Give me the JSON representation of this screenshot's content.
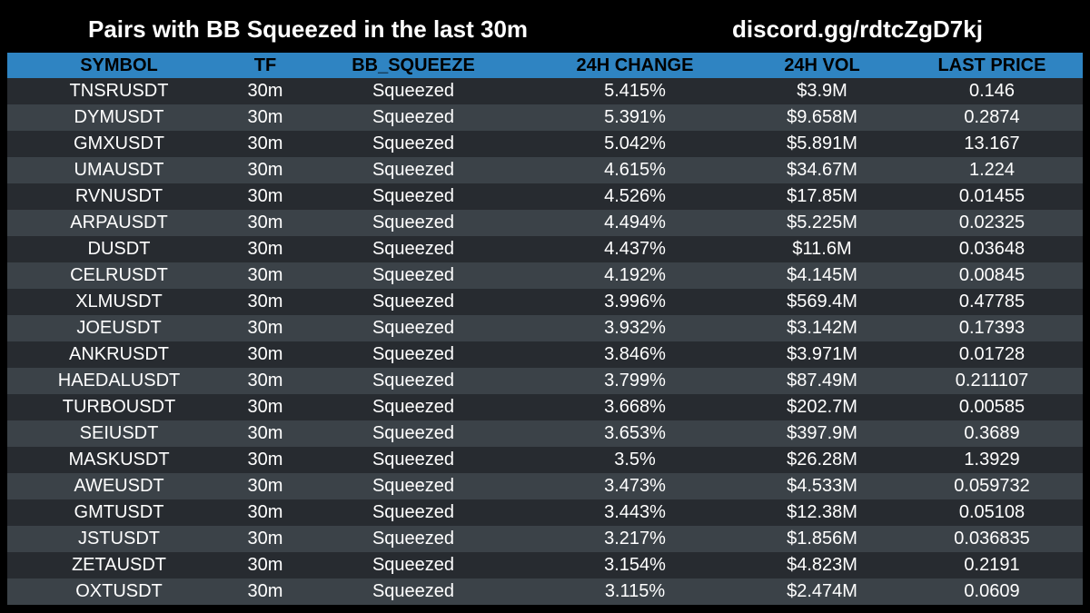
{
  "header": {
    "title": "Pairs with BB Squeezed in the last 30m",
    "link": "discord.gg/rdtcZgD7kj"
  },
  "table": {
    "columns": [
      "SYMBOL",
      "TF",
      "BB_SQUEEZE",
      "24H CHANGE",
      "24H VOL",
      "LAST PRICE"
    ],
    "rows": [
      [
        "TNSRUSDT",
        "30m",
        "Squeezed",
        "5.415%",
        "$3.9M",
        "0.146"
      ],
      [
        "DYMUSDT",
        "30m",
        "Squeezed",
        "5.391%",
        "$9.658M",
        "0.2874"
      ],
      [
        "GMXUSDT",
        "30m",
        "Squeezed",
        "5.042%",
        "$5.891M",
        "13.167"
      ],
      [
        "UMAUSDT",
        "30m",
        "Squeezed",
        "4.615%",
        "$34.67M",
        "1.224"
      ],
      [
        "RVNUSDT",
        "30m",
        "Squeezed",
        "4.526%",
        "$17.85M",
        "0.01455"
      ],
      [
        "ARPAUSDT",
        "30m",
        "Squeezed",
        "4.494%",
        "$5.225M",
        "0.02325"
      ],
      [
        "DUSDT",
        "30m",
        "Squeezed",
        "4.437%",
        "$11.6M",
        "0.03648"
      ],
      [
        "CELRUSDT",
        "30m",
        "Squeezed",
        "4.192%",
        "$4.145M",
        "0.00845"
      ],
      [
        "XLMUSDT",
        "30m",
        "Squeezed",
        "3.996%",
        "$569.4M",
        "0.47785"
      ],
      [
        "JOEUSDT",
        "30m",
        "Squeezed",
        "3.932%",
        "$3.142M",
        "0.17393"
      ],
      [
        "ANKRUSDT",
        "30m",
        "Squeezed",
        "3.846%",
        "$3.971M",
        "0.01728"
      ],
      [
        "HAEDALUSDT",
        "30m",
        "Squeezed",
        "3.799%",
        "$87.49M",
        "0.211107"
      ],
      [
        "TURBOUSDT",
        "30m",
        "Squeezed",
        "3.668%",
        "$202.7M",
        "0.00585"
      ],
      [
        "SEIUSDT",
        "30m",
        "Squeezed",
        "3.653%",
        "$397.9M",
        "0.3689"
      ],
      [
        "MASKUSDT",
        "30m",
        "Squeezed",
        "3.5%",
        "$26.28M",
        "1.3929"
      ],
      [
        "AWEUSDT",
        "30m",
        "Squeezed",
        "3.473%",
        "$4.533M",
        "0.059732"
      ],
      [
        "GMTUSDT",
        "30m",
        "Squeezed",
        "3.443%",
        "$12.38M",
        "0.05108"
      ],
      [
        "JSTUSDT",
        "30m",
        "Squeezed",
        "3.217%",
        "$1.856M",
        "0.036835"
      ],
      [
        "ZETAUSDT",
        "30m",
        "Squeezed",
        "3.154%",
        "$4.823M",
        "0.2191"
      ],
      [
        "OXTUSDT",
        "30m",
        "Squeezed",
        "3.115%",
        "$2.474M",
        "0.0609"
      ]
    ]
  },
  "colors": {
    "background": "#000000",
    "header_row": "#2f84c2",
    "row_dark": "#272b30",
    "row_light": "#3b4248",
    "text": "#ffffff"
  }
}
